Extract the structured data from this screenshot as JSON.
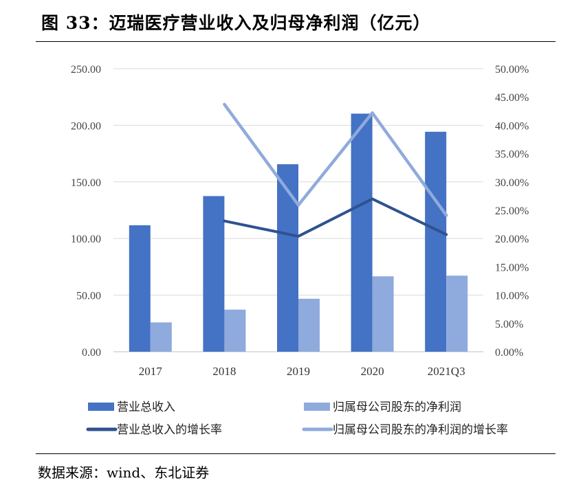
{
  "figure": {
    "title": "图 33：迈瑞医疗营业收入及归母净利润（亿元）",
    "source": "数据来源：wind、东北证券"
  },
  "chart_data": {
    "type": "bar",
    "categories": [
      "2017",
      "2018",
      "2019",
      "2020",
      "2021Q3"
    ],
    "left_axis": {
      "ylim": [
        0,
        250
      ],
      "ticks": [
        "0.00",
        "50.00",
        "100.00",
        "150.00",
        "200.00",
        "250.00"
      ]
    },
    "right_axis": {
      "ylim": [
        0,
        50
      ],
      "ticks": [
        "0.00%",
        "5.00%",
        "10.00%",
        "15.00%",
        "20.00%",
        "25.00%",
        "30.00%",
        "35.00%",
        "40.00%",
        "45.00%",
        "50.00%"
      ]
    },
    "series": [
      {
        "name": "营业总收入",
        "kind": "bar",
        "axis": "left",
        "color": "#4472c4",
        "values": [
          111.7,
          137.5,
          165.6,
          210.3,
          194.3
        ]
      },
      {
        "name": "归属母公司股东的净利润",
        "kind": "bar",
        "axis": "left",
        "color": "#8faadc",
        "values": [
          25.9,
          37.2,
          46.8,
          66.6,
          67.2
        ]
      },
      {
        "name": "营业总收入的增长率",
        "kind": "line",
        "axis": "right",
        "color": "#2f528f",
        "values": [
          null,
          23.1,
          20.4,
          27.0,
          20.7
        ]
      },
      {
        "name": "归属母公司股东的净利润的增长率",
        "kind": "line",
        "axis": "right",
        "color": "#8faadc",
        "values": [
          null,
          43.7,
          25.9,
          42.2,
          24.1
        ]
      }
    ],
    "grid": true,
    "legend_position": "bottom"
  }
}
